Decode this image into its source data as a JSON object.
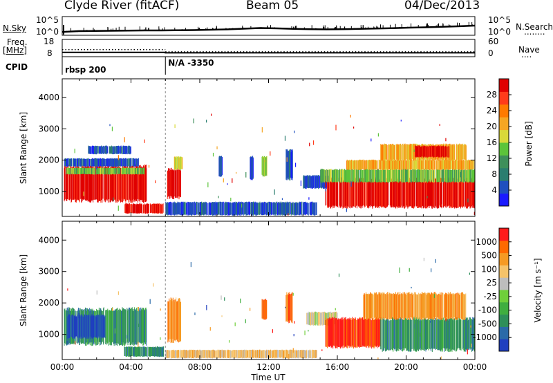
{
  "header": {
    "station": "Clyde River (fitACF)",
    "beam": "Beam 05",
    "date": "04/Dec/2013"
  },
  "side_labels": {
    "nsky": "N.Sky",
    "freq_line1": "Freq.",
    "freq_line2": "[MHz]",
    "cpid": "CPID",
    "nsearch": "N.Search",
    "nsearch_dots": "........",
    "nave": "Nave",
    "nave_dots": "...."
  },
  "colors": {
    "frame": "#000000",
    "background": "#ffffff",
    "ground_scatter": "#bdbdbd"
  },
  "chart_data": [
    {
      "name": "noise",
      "type": "line",
      "left_ticks": [
        "10^5",
        "10^0"
      ],
      "right_ticks": [
        "10^5",
        "10^0"
      ],
      "series": [
        {
          "values": [
            0.15,
            0.2,
            0.21,
            0.22,
            0.23,
            0.24,
            0.24,
            0.25,
            0.26,
            0.28,
            0.3,
            0.34,
            0.38,
            0.36,
            0.33,
            0.31,
            0.3,
            0.31,
            0.33,
            0.35,
            0.37,
            0.4,
            0.42,
            0.45,
            0.48,
            0.52
          ]
        }
      ],
      "x": [
        0,
        0.96,
        1.92,
        2.88,
        3.84,
        4.8,
        5.76,
        6.72,
        7.68,
        8.64,
        9.6,
        10.56,
        11.52,
        12.48,
        13.44,
        14.4,
        15.36,
        16.32,
        17.28,
        18.24,
        19.2,
        20.16,
        21.12,
        22.08,
        23.04,
        24
      ]
    },
    {
      "name": "frequency-nave",
      "type": "line",
      "left_ticks": [
        "18",
        "8"
      ],
      "right_ticks": [
        "60",
        "0"
      ],
      "freq_change_hour": 6.0,
      "freq_before": 10.3,
      "freq_after": 10.0,
      "nave_before": 24,
      "nave_after": 16
    },
    {
      "name": "cpid",
      "type": "table",
      "segments": [
        {
          "start_hour": 0,
          "label": "rbsp 200"
        },
        {
          "start_hour": 6.0,
          "label": "N/A -3350"
        }
      ]
    },
    {
      "name": "power",
      "type": "heatmap",
      "ylabel": "Slant Range [km]",
      "yticks": [
        "1000",
        "2000",
        "3000",
        "4000"
      ],
      "ylim": [
        200,
        4600
      ],
      "xlim": [
        0,
        24
      ],
      "colorbar": {
        "label": "Power [dB]",
        "ticks": [
          "4",
          "8",
          "12",
          "16",
          "20",
          "24",
          "28"
        ],
        "colors": [
          "#1a1aff",
          "#1f4fbf",
          "#2a7d6f",
          "#3e8f5a",
          "#5cc43a",
          "#d9d93a",
          "#f5a623",
          "#ff7a00",
          "#ff3b1a",
          "#e00000"
        ]
      },
      "regions": [
        {
          "t0": 0.1,
          "t1": 4.9,
          "r0": 700,
          "r1": 1800,
          "level": 9
        },
        {
          "t0": 0.2,
          "t1": 4.8,
          "r0": 1550,
          "r1": 1750,
          "level": 4
        },
        {
          "t0": 0.1,
          "t1": 4.5,
          "r0": 1800,
          "r1": 2050,
          "level": 1
        },
        {
          "t0": 1.5,
          "t1": 4.0,
          "r0": 2200,
          "r1": 2450,
          "level": 1
        },
        {
          "t0": 3.6,
          "t1": 5.9,
          "r0": 300,
          "r1": 600,
          "level": 9
        },
        {
          "t0": 6.1,
          "t1": 6.9,
          "r0": 800,
          "r1": 1700,
          "level": 9
        },
        {
          "t0": 6.5,
          "t1": 7.0,
          "r0": 1700,
          "r1": 2100,
          "level": 5
        },
        {
          "t0": 6.0,
          "t1": 14.8,
          "r0": 250,
          "r1": 650,
          "level": 1
        },
        {
          "t0": 9.1,
          "t1": 9.3,
          "r0": 1500,
          "r1": 2100,
          "level": 1
        },
        {
          "t0": 10.9,
          "t1": 11.1,
          "r0": 1400,
          "r1": 2100,
          "level": 1
        },
        {
          "t0": 11.6,
          "t1": 11.9,
          "r0": 1500,
          "r1": 2100,
          "level": 4
        },
        {
          "t0": 13.0,
          "t1": 13.4,
          "r0": 1400,
          "r1": 2300,
          "level": 1
        },
        {
          "t0": 14.0,
          "t1": 15.5,
          "r0": 1100,
          "r1": 1500,
          "level": 1
        },
        {
          "t0": 15.3,
          "t1": 24.0,
          "r0": 500,
          "r1": 1400,
          "level": 9
        },
        {
          "t0": 15.0,
          "t1": 24.0,
          "r0": 1300,
          "r1": 1700,
          "level": 4
        },
        {
          "t0": 16.5,
          "t1": 24.0,
          "r0": 1700,
          "r1": 2000,
          "level": 6
        },
        {
          "t0": 18.5,
          "t1": 23.5,
          "r0": 2000,
          "r1": 2500,
          "level": 6
        },
        {
          "t0": 20.5,
          "t1": 22.5,
          "r0": 2100,
          "r1": 2450,
          "level": 9
        }
      ]
    },
    {
      "name": "velocity",
      "type": "heatmap",
      "ylabel": "Slant Range [km]",
      "yticks": [
        "1000",
        "2000",
        "3000",
        "4000"
      ],
      "ylim": [
        200,
        4600
      ],
      "xlim": [
        0,
        24
      ],
      "xticks": [
        "00:00",
        "04:00",
        "08:00",
        "12:00",
        "16:00",
        "20:00",
        "00:00"
      ],
      "xlabel": "Time UT",
      "colorbar": {
        "label": "Velocity [m s⁻¹]",
        "ticks": [
          "1000",
          "500",
          "100",
          "25",
          "-25",
          "-100",
          "-500",
          "-1000"
        ],
        "colors": [
          "#1f3fbf",
          "#2a6aa8",
          "#2e8f5a",
          "#3fae3f",
          "#6fcf3a",
          "#bdbdbd",
          "#f5c36a",
          "#f59a23",
          "#ff6a00",
          "#ff1a1a"
        ]
      },
      "regions": [
        {
          "t0": 0.1,
          "t1": 4.9,
          "r0": 700,
          "r1": 1800,
          "level": 2
        },
        {
          "t0": 0.3,
          "t1": 2.5,
          "r0": 900,
          "r1": 1600,
          "level": 0
        },
        {
          "t0": 3.6,
          "t1": 5.9,
          "r0": 300,
          "r1": 600,
          "level": 2
        },
        {
          "t0": 6.1,
          "t1": 6.9,
          "r0": 800,
          "r1": 2100,
          "level": 7
        },
        {
          "t0": 6.0,
          "t1": 14.8,
          "r0": 250,
          "r1": 500,
          "level": 6
        },
        {
          "t0": 11.6,
          "t1": 11.9,
          "r0": 1500,
          "r1": 2100,
          "level": 8
        },
        {
          "t0": 13.0,
          "t1": 13.4,
          "r0": 1400,
          "r1": 2300,
          "level": 8
        },
        {
          "t0": 14.2,
          "t1": 16.0,
          "r0": 1300,
          "r1": 1700,
          "level": 5
        },
        {
          "t0": 15.3,
          "t1": 18.5,
          "r0": 600,
          "r1": 1500,
          "level": 9
        },
        {
          "t0": 18.5,
          "t1": 24.0,
          "r0": 500,
          "r1": 1500,
          "level": 2
        },
        {
          "t0": 17.5,
          "t1": 23.5,
          "r0": 1500,
          "r1": 2300,
          "level": 7
        }
      ]
    }
  ]
}
